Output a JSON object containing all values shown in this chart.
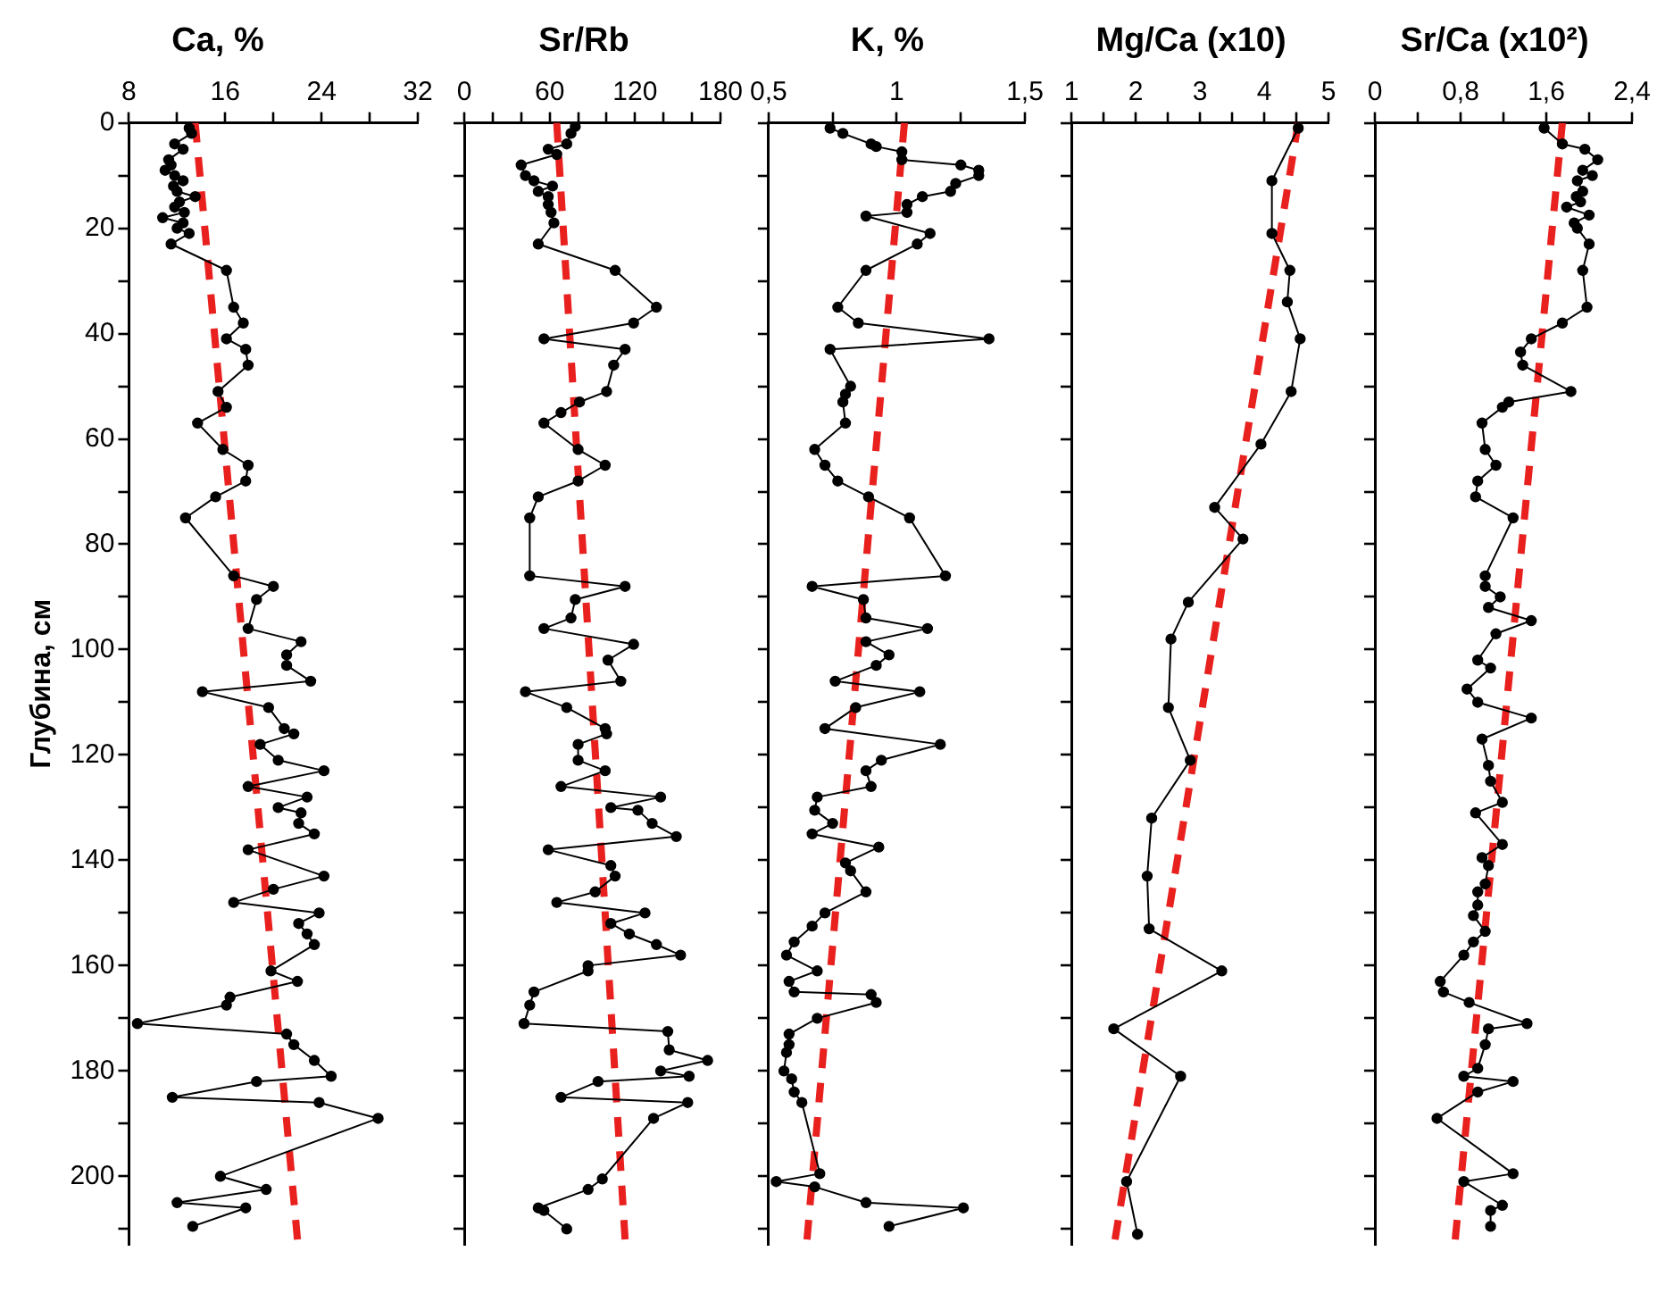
{
  "chart_data": [
    {
      "type": "line",
      "title": "Ca, %",
      "ylabel": "Глубина, см",
      "xlim": [
        8,
        32
      ],
      "xticks": [
        8,
        {
          "value": 12,
          "label": null
        },
        16,
        {
          "value": 20,
          "label": null
        },
        24,
        {
          "value": 28,
          "label": null
        },
        32
      ],
      "ylim": [
        213,
        0
      ],
      "yticks": [
        0,
        {
          "value": 10,
          "label": null
        },
        20,
        {
          "value": 30,
          "label": null
        },
        40,
        {
          "value": 50,
          "label": null
        },
        60,
        {
          "value": 70,
          "label": null
        },
        80,
        {
          "value": 90,
          "label": null
        },
        100,
        {
          "value": 110,
          "label": null
        },
        120,
        {
          "value": 130,
          "label": null
        },
        140,
        {
          "value": 150,
          "label": null
        },
        160,
        {
          "value": 170,
          "label": null
        },
        180,
        {
          "value": 190,
          "label": null
        },
        200,
        {
          "value": 210,
          "label": null
        }
      ],
      "series": [
        {
          "type": "line",
          "color": "#000000",
          "marker": "circle",
          "line_style": "solid",
          "x": [
            13.0,
            13.2,
            11.8,
            12.5,
            11.3,
            11.5,
            11.0,
            11.8,
            12.5,
            11.7,
            12.0,
            13.5,
            12.2,
            11.8,
            12.6,
            10.8,
            12.5,
            12.0,
            13.0,
            11.5,
            16.1,
            16.7,
            17.5,
            16.1,
            17.7,
            17.9,
            15.4,
            16.1,
            13.7,
            15.8,
            17.9,
            17.7,
            15.2,
            12.7,
            16.7,
            20.0,
            18.6,
            17.9,
            22.3,
            21.1,
            21.1,
            23.1,
            14.1,
            19.6,
            20.9,
            21.7,
            18.9,
            20.4,
            24.2,
            17.9,
            22.8,
            20.4,
            22.3,
            22.1,
            23.4,
            17.9,
            24.2,
            20.0,
            16.7,
            23.8,
            22.1,
            22.8,
            23.4,
            19.8,
            22.0,
            16.4,
            16.1,
            8.7,
            21.1,
            21.7,
            23.4,
            24.8,
            18.6,
            11.6,
            23.8,
            28.7,
            15.6,
            19.4,
            12.0,
            17.7,
            13.3
          ],
          "values": [
            1,
            2,
            4,
            5,
            7,
            8,
            9,
            10,
            11,
            12,
            13,
            14,
            15,
            16,
            17,
            18,
            19,
            20,
            21,
            23,
            28,
            35,
            38,
            41,
            43,
            46,
            51,
            54,
            57,
            62,
            65,
            68,
            71,
            75,
            86,
            88,
            90.5,
            96,
            98.5,
            101,
            103,
            106,
            108,
            111,
            115,
            116,
            118,
            121,
            123,
            126,
            128,
            130,
            131,
            133,
            135,
            138,
            143,
            145.5,
            148,
            150,
            152,
            154,
            156,
            161,
            163,
            166,
            167.5,
            171,
            173,
            175,
            178,
            181,
            182,
            185,
            186,
            189,
            200,
            202.5,
            205,
            206,
            209.5
          ]
        },
        {
          "type": "line",
          "color": "#e8201e",
          "marker": "none",
          "line_style": "dashed",
          "x": [
            13.5,
            22
          ],
          "values": [
            0,
            212
          ]
        }
      ]
    },
    {
      "type": "line",
      "title": "Sr/Rb",
      "tick_labels": "x",
      "xlim": [
        0,
        180
      ],
      "xticks": [
        0,
        {
          "value": 20,
          "label": null
        },
        {
          "value": 40,
          "label": null
        },
        60,
        {
          "value": 80,
          "label": null
        },
        {
          "value": 100,
          "label": null
        },
        120,
        {
          "value": 140,
          "label": null
        },
        {
          "value": 160,
          "label": null
        },
        180
      ],
      "ylim": [
        213,
        0
      ],
      "yticks": [
        0,
        10,
        20,
        30,
        40,
        50,
        60,
        70,
        80,
        90,
        100,
        110,
        120,
        130,
        140,
        150,
        160,
        170,
        180,
        190,
        200,
        210
      ],
      "series": [
        {
          "type": "line",
          "color": "#000000",
          "marker": "circle",
          "line_style": "solid",
          "x": [
            78,
            75,
            72,
            59,
            65,
            40,
            43,
            49,
            62,
            52,
            59,
            59,
            61,
            63,
            52,
            106,
            135,
            119,
            56,
            113,
            105,
            100,
            81,
            68,
            56,
            80,
            99,
            80,
            52,
            46,
            46,
            113,
            78,
            75,
            56,
            119,
            101,
            110,
            43,
            72,
            99,
            100,
            80,
            80,
            99,
            68,
            138,
            103,
            122,
            132,
            149,
            59,
            103,
            106,
            92,
            65,
            127,
            103,
            116,
            135,
            152,
            87,
            87,
            49,
            46,
            42,
            143,
            144,
            171,
            138,
            158,
            94,
            68,
            157,
            133,
            97,
            87,
            52,
            56,
            72
          ],
          "values": [
            0.7,
            2,
            4,
            5,
            6,
            8,
            10,
            11,
            12,
            13,
            14,
            15.5,
            17,
            19,
            23,
            28,
            35,
            38,
            41,
            43,
            46,
            51,
            53,
            55,
            57,
            62,
            65,
            68,
            71,
            75,
            86,
            88,
            90.5,
            94,
            96,
            99,
            102,
            106,
            108,
            111,
            115,
            116,
            118,
            121,
            123,
            126,
            128,
            130,
            130.5,
            133,
            135.5,
            138,
            141,
            143,
            146,
            148,
            150,
            152,
            154,
            156,
            158,
            160,
            161,
            165,
            167.5,
            171,
            172.5,
            176,
            178,
            180,
            181,
            182,
            185,
            186,
            189,
            200.5,
            202.5,
            206,
            206.5,
            210
          ]
        },
        {
          "type": "line",
          "color": "#e8201e",
          "marker": "none",
          "line_style": "dashed",
          "x": [
            65,
            113
          ],
          "values": [
            0,
            212
          ]
        }
      ]
    },
    {
      "type": "line",
      "title": "K, %",
      "tick_labels": "x",
      "xlim": [
        0.5,
        1.5
      ],
      "xticks": [
        {
          "value": 0.5,
          "label": "0,5"
        },
        {
          "value": 0.75,
          "label": null
        },
        1,
        {
          "value": 1.25,
          "label": null
        },
        {
          "value": 1.5,
          "label": "1,5"
        }
      ],
      "ylim": [
        213,
        0
      ],
      "yticks": [
        0,
        10,
        20,
        30,
        40,
        50,
        60,
        70,
        80,
        90,
        100,
        110,
        120,
        130,
        140,
        150,
        160,
        170,
        180,
        190,
        200,
        210
      ],
      "series": [
        {
          "type": "line",
          "color": "#000000",
          "marker": "circle",
          "line_style": "solid",
          "x": [
            0.74,
            0.79,
            0.9,
            0.92,
            1.02,
            1.02,
            1.25,
            1.32,
            1.32,
            1.23,
            1.21,
            1.1,
            1.04,
            1.04,
            0.88,
            1.13,
            1.08,
            0.88,
            0.77,
            0.85,
            1.36,
            0.74,
            0.82,
            0.8,
            0.79,
            0.8,
            0.68,
            0.72,
            0.77,
            0.89,
            1.05,
            1.19,
            0.67,
            0.87,
            0.88,
            1.12,
            0.88,
            0.97,
            0.92,
            0.76,
            1.09,
            0.84,
            0.72,
            1.17,
            0.94,
            0.88,
            0.9,
            0.69,
            0.68,
            0.75,
            0.67,
            0.93,
            0.8,
            0.82,
            0.88,
            0.72,
            0.67,
            0.6,
            0.57,
            0.69,
            0.58,
            0.6,
            0.9,
            0.92,
            0.69,
            0.58,
            0.58,
            0.57,
            0.56,
            0.59,
            0.6,
            0.63,
            0.7,
            0.53,
            0.68,
            0.88,
            1.26,
            0.97
          ],
          "values": [
            1,
            2,
            4,
            4.5,
            5.5,
            7,
            8,
            9,
            10,
            11.5,
            13,
            14,
            15.5,
            17,
            17.7,
            21,
            23,
            28,
            35,
            38,
            41,
            43,
            50,
            51.5,
            53,
            57,
            62,
            65,
            68,
            71,
            75,
            86,
            88,
            90.5,
            94,
            96,
            98.5,
            101,
            103,
            106,
            108,
            111,
            115,
            118,
            121,
            123,
            126,
            128,
            130.5,
            133,
            135,
            137.5,
            140.5,
            142,
            146,
            150,
            152.5,
            155.5,
            158,
            161,
            163,
            165,
            165.5,
            167,
            170,
            173,
            175,
            176.5,
            180,
            181.5,
            184,
            186,
            199.5,
            201,
            202,
            205,
            206,
            209.5
          ]
        },
        {
          "type": "line",
          "color": "#e8201e",
          "marker": "none",
          "line_style": "dashed",
          "x": [
            1.03,
            0.65
          ],
          "values": [
            0,
            212
          ]
        }
      ]
    },
    {
      "type": "line",
      "title": "Mg/Ca (x10)",
      "tick_labels": "x",
      "xlim": [
        1,
        5
      ],
      "xticks": [
        1,
        {
          "value": 1.5,
          "label": null
        },
        2,
        {
          "value": 2.5,
          "label": null
        },
        3,
        {
          "value": 3.5,
          "label": null
        },
        4,
        {
          "value": 4.5,
          "label": null
        },
        5
      ],
      "ylim": [
        213,
        0
      ],
      "yticks": [
        0,
        10,
        20,
        30,
        40,
        50,
        60,
        70,
        80,
        90,
        100,
        110,
        120,
        130,
        140,
        150,
        160,
        170,
        180,
        190,
        200,
        210
      ],
      "series": [
        {
          "type": "line",
          "color": "#000000",
          "marker": "circle",
          "line_style": "solid",
          "x": [
            4.53,
            4.12,
            4.12,
            4.4,
            4.36,
            4.56,
            4.42,
            3.95,
            3.23,
            3.67,
            2.82,
            2.55,
            2.51,
            2.85,
            2.25,
            2.18,
            2.21,
            3.34,
            1.66,
            2.7,
            1.86,
            2.03
          ],
          "values": [
            1,
            11,
            21,
            28,
            34,
            41,
            51,
            61,
            73,
            79,
            91,
            98,
            111,
            121,
            132,
            143,
            153,
            161,
            172,
            181,
            201,
            211
          ]
        },
        {
          "type": "line",
          "color": "#e8201e",
          "marker": "none",
          "line_style": "dashed",
          "x": [
            4.53,
            1.68
          ],
          "values": [
            0,
            212
          ]
        }
      ]
    },
    {
      "type": "line",
      "title": "Sr/Ca (x10²)",
      "tick_labels": "x",
      "xlim": [
        0,
        2.4
      ],
      "xticks": [
        0,
        {
          "value": 0.4,
          "label": null
        },
        {
          "value": 0.8,
          "label": "0,8"
        },
        {
          "value": 1.2,
          "label": null
        },
        {
          "value": 1.6,
          "label": "1,6"
        },
        {
          "value": 2,
          "label": null
        },
        {
          "value": 2.4,
          "label": "2,4"
        }
      ],
      "ylim": [
        213,
        0
      ],
      "yticks": [
        0,
        10,
        20,
        30,
        40,
        50,
        60,
        70,
        80,
        90,
        100,
        110,
        120,
        130,
        140,
        150,
        160,
        170,
        180,
        190,
        200,
        210
      ],
      "series": [
        {
          "type": "line",
          "color": "#000000",
          "marker": "circle",
          "line_style": "solid",
          "x": [
            1.58,
            1.75,
            1.96,
            2.08,
            1.94,
            2.03,
            1.89,
            1.94,
            1.88,
            1.92,
            1.79,
            2.0,
            1.86,
            1.89,
            2.0,
            1.94,
            1.98,
            1.75,
            1.46,
            1.36,
            1.38,
            1.83,
            1.25,
            1.19,
            1.0,
            1.03,
            1.13,
            0.96,
            0.94,
            1.29,
            1.03,
            1.03,
            1.17,
            1.06,
            1.46,
            1.13,
            0.96,
            1.08,
            0.86,
            0.96,
            1.46,
            1.0,
            1.06,
            1.08,
            1.19,
            0.94,
            1.19,
            1.0,
            1.06,
            1.03,
            0.96,
            0.96,
            0.92,
            1.03,
            0.92,
            0.83,
            0.61,
            0.64,
            0.88,
            1.42,
            1.06,
            1.03,
            0.96,
            0.83,
            1.29,
            0.96,
            0.58,
            1.29,
            0.83,
            1.19,
            1.08,
            1.08
          ],
          "values": [
            1,
            4,
            5,
            7,
            9,
            10,
            11,
            13,
            14,
            15,
            16,
            17.5,
            19,
            20,
            23,
            28,
            35,
            38,
            41,
            43.5,
            46,
            51,
            53,
            54,
            57,
            62,
            65,
            68,
            71,
            75,
            86,
            88,
            90,
            92,
            94.5,
            97,
            102,
            103.5,
            107.5,
            110,
            113,
            117,
            122,
            125,
            129,
            131,
            137,
            139.5,
            141,
            144.5,
            146,
            148.5,
            150.5,
            153.5,
            155.5,
            158,
            163,
            165,
            167,
            171,
            172,
            175,
            179.5,
            181,
            182,
            184,
            189,
            199.5,
            201,
            205.5,
            206.5,
            209.5
          ]
        },
        {
          "type": "line",
          "color": "#e8201e",
          "marker": "none",
          "line_style": "dashed",
          "x": [
            1.75,
            0.75
          ],
          "values": [
            0,
            212
          ]
        }
      ]
    }
  ]
}
